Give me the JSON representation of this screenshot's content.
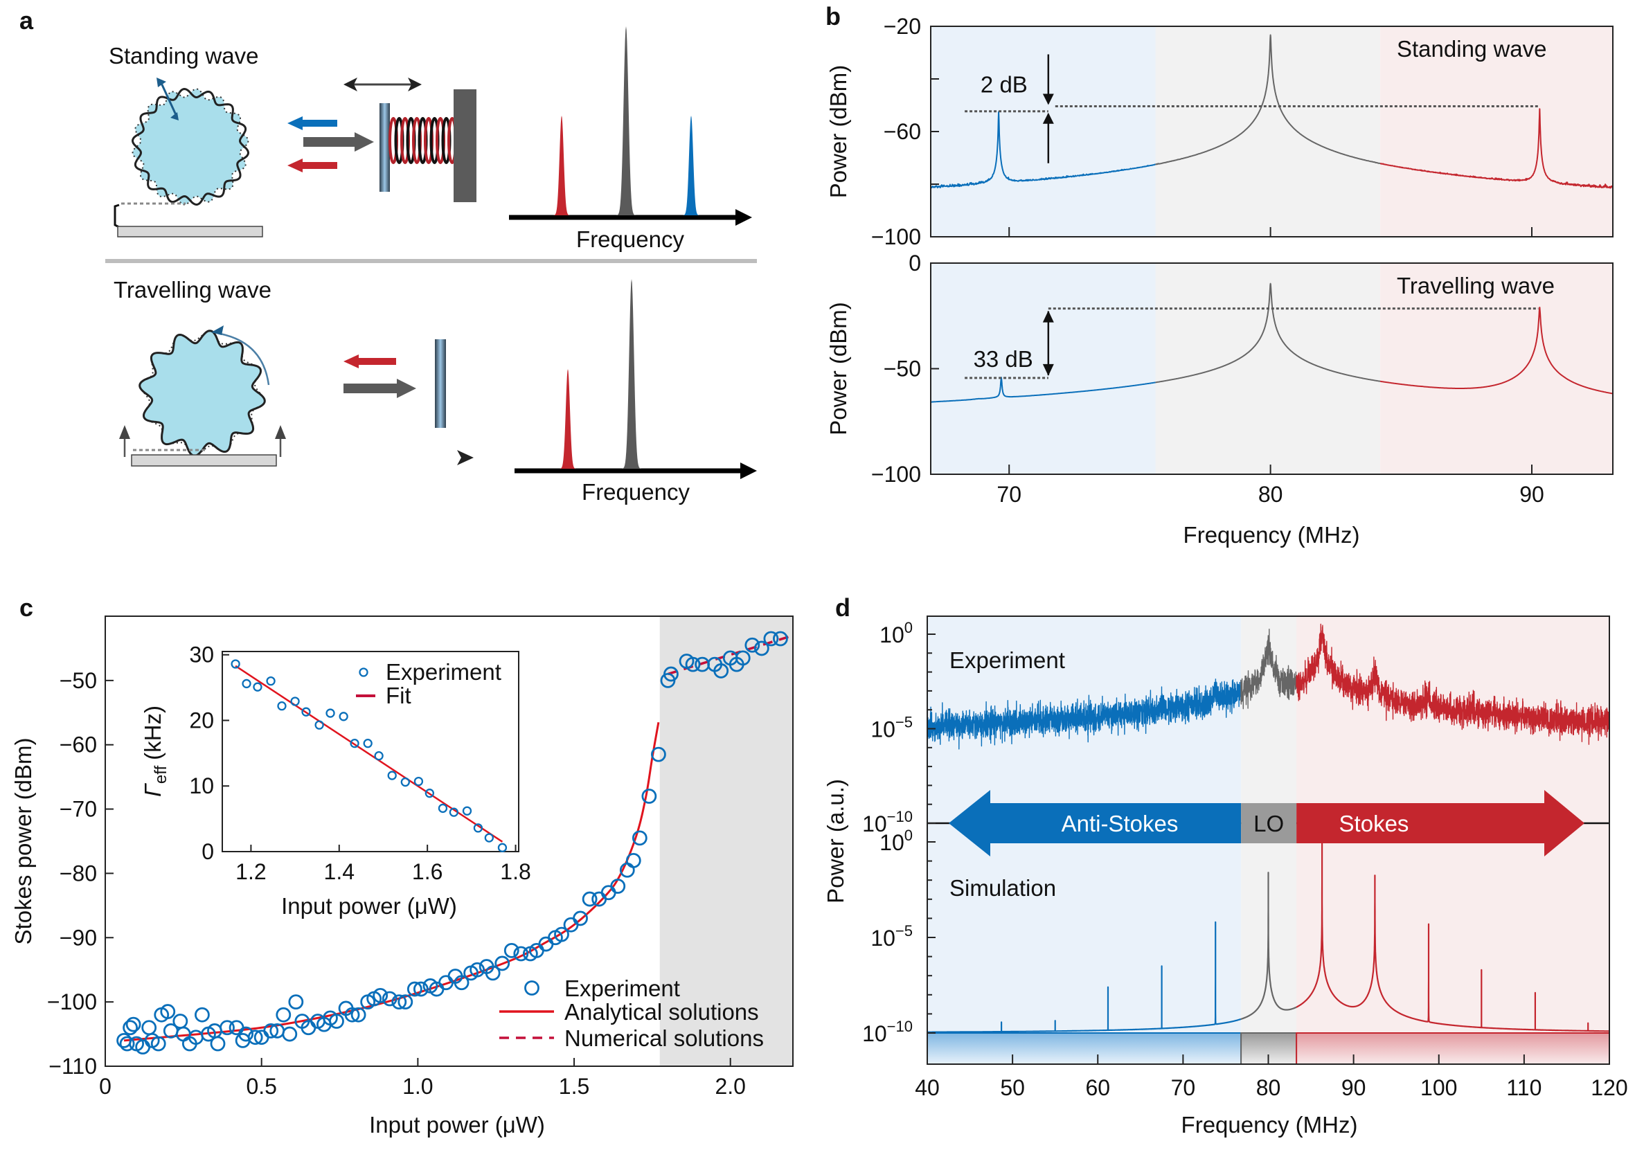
{
  "panel_labels": {
    "a": "a",
    "b": "b",
    "c": "c",
    "d": "d"
  },
  "panel_a": {
    "standing_title": "Standing wave",
    "travelling_title": "Travelling wave",
    "freq_label": "Frequency",
    "colors": {
      "stokes": "#c4262e",
      "anti_stokes": "#0a6fba",
      "pump": "#5a5a5a",
      "resonator": "#a9deeb"
    }
  },
  "colors": {
    "blue": "#0a6fba",
    "gray": "#666666",
    "red": "#c4262e",
    "blue_bg": "#eaf2fa",
    "gray_bg": "#f2f2f2",
    "red_bg": "#f9eded",
    "shade": "#e3e3e3"
  },
  "chart_data": [
    {
      "id": "b-standing",
      "type": "line",
      "title": "Standing wave",
      "xlabel": "Frequency (MHz)",
      "ylabel": "Power (dBm)",
      "xlim": [
        67,
        93.1
      ],
      "ylim": [
        -100,
        -20
      ],
      "xticks": [
        70,
        80,
        90
      ],
      "yticks": [
        -20,
        -60,
        -100
      ],
      "yminor": [
        -40,
        -80
      ],
      "regions": [
        [
          67,
          75.6
        ],
        [
          75.6,
          84.2
        ],
        [
          84.2,
          93.1
        ]
      ],
      "noise_floor_dbm": -89,
      "peaks": [
        [
          69.6,
          -52.5,
          0.01
        ],
        [
          80,
          -23.3,
          0.015
        ],
        [
          80,
          -76,
          0.15
        ],
        [
          78.3,
          -85,
          0.3
        ],
        [
          81.8,
          -85,
          0.3
        ],
        [
          90.3,
          -51.4,
          0.01
        ]
      ],
      "annotation": {
        "text": "2 dB",
        "anti_stokes_level": -52.3,
        "stokes_level": -50.4,
        "x": 71.5
      }
    },
    {
      "id": "b-travelling",
      "type": "line",
      "title": "Travelling wave",
      "xlabel": "Frequency (MHz)",
      "ylabel": "Power (dBm)",
      "xlim": [
        67,
        93.1
      ],
      "ylim": [
        -100,
        0
      ],
      "xticks": [
        70,
        80,
        90
      ],
      "yticks": [
        0,
        -50,
        -100
      ],
      "regions": [
        [
          67,
          75.6
        ],
        [
          75.6,
          84.2
        ],
        [
          84.2,
          93.1
        ]
      ],
      "noise_floor_dbm": -84,
      "peaks": [
        [
          69.7,
          -54.7,
          0.02
        ],
        [
          69.6,
          -76,
          0.4
        ],
        [
          68.8,
          -78,
          0.15
        ],
        [
          80,
          -9.7,
          0.02
        ],
        [
          79.85,
          -55,
          0.04
        ],
        [
          80.2,
          -55,
          0.04
        ],
        [
          80,
          -70,
          0.25
        ],
        [
          78.0,
          -77,
          0.2
        ],
        [
          82.0,
          -76,
          0.2
        ],
        [
          85.8,
          -77,
          0.02
        ],
        [
          90.3,
          -21,
          0.02
        ],
        [
          90.1,
          -62,
          0.05
        ],
        [
          90.45,
          -63,
          0.05
        ],
        [
          90.3,
          -72,
          0.3
        ],
        [
          91.2,
          -72,
          0.1
        ]
      ],
      "annotation": {
        "text": "33 dB",
        "anti_stokes_level": -54.4,
        "stokes_level": -21.5,
        "x": 71.5
      }
    },
    {
      "id": "c-main",
      "type": "scatter",
      "xlabel": "Input power (μW)",
      "ylabel": "Stokes power (dBm)",
      "xlim": [
        0,
        2.2
      ],
      "ylim": [
        -110,
        -40
      ],
      "xticks": [
        0,
        0.5,
        1.0,
        1.5,
        2.0
      ],
      "xtick_labels": [
        "0",
        "0.5",
        "1.0",
        "1.5",
        "2.0"
      ],
      "yticks": [
        -50,
        -60,
        -70,
        -80,
        -90,
        -100,
        -110
      ],
      "shaded_region": [
        1.774,
        2.2
      ],
      "legend": [
        "Experiment",
        "Analytical solutions",
        "Numerical solutions"
      ],
      "experiment": [
        [
          0.06,
          -106
        ],
        [
          0.07,
          -106.5
        ],
        [
          0.08,
          -104
        ],
        [
          0.09,
          -103.5
        ],
        [
          0.1,
          -106.5
        ],
        [
          0.12,
          -107
        ],
        [
          0.14,
          -104
        ],
        [
          0.15,
          -106
        ],
        [
          0.17,
          -106.5
        ],
        [
          0.18,
          -102
        ],
        [
          0.2,
          -101.5
        ],
        [
          0.21,
          -104.5
        ],
        [
          0.24,
          -103
        ],
        [
          0.25,
          -105
        ],
        [
          0.27,
          -106.5
        ],
        [
          0.29,
          -105.5
        ],
        [
          0.31,
          -102
        ],
        [
          0.33,
          -105
        ],
        [
          0.35,
          -104.5
        ],
        [
          0.36,
          -106.5
        ],
        [
          0.39,
          -104
        ],
        [
          0.42,
          -104
        ],
        [
          0.44,
          -106
        ],
        [
          0.45,
          -105
        ],
        [
          0.48,
          -105.5
        ],
        [
          0.5,
          -105.5
        ],
        [
          0.53,
          -104.5
        ],
        [
          0.55,
          -104.5
        ],
        [
          0.57,
          -102
        ],
        [
          0.59,
          -105
        ],
        [
          0.61,
          -100
        ],
        [
          0.63,
          -103
        ],
        [
          0.65,
          -104
        ],
        [
          0.68,
          -103
        ],
        [
          0.7,
          -103.5
        ],
        [
          0.72,
          -102.5
        ],
        [
          0.74,
          -103
        ],
        [
          0.77,
          -101
        ],
        [
          0.79,
          -102
        ],
        [
          0.81,
          -102
        ],
        [
          0.84,
          -100
        ],
        [
          0.86,
          -99.5
        ],
        [
          0.88,
          -99
        ],
        [
          0.91,
          -99.5
        ],
        [
          0.94,
          -100
        ],
        [
          0.96,
          -100
        ],
        [
          0.99,
          -98
        ],
        [
          1.01,
          -98
        ],
        [
          1.04,
          -97.5
        ],
        [
          1.06,
          -98
        ],
        [
          1.09,
          -97
        ],
        [
          1.12,
          -96
        ],
        [
          1.14,
          -97
        ],
        [
          1.17,
          -95.5
        ],
        [
          1.19,
          -95
        ],
        [
          1.22,
          -94.5
        ],
        [
          1.24,
          -95.5
        ],
        [
          1.27,
          -94
        ],
        [
          1.3,
          -92
        ],
        [
          1.33,
          -92.5
        ],
        [
          1.36,
          -92.5
        ],
        [
          1.38,
          -92
        ],
        [
          1.41,
          -91
        ],
        [
          1.44,
          -90
        ],
        [
          1.46,
          -89.5
        ],
        [
          1.49,
          -88
        ],
        [
          1.52,
          -87
        ],
        [
          1.55,
          -84
        ],
        [
          1.58,
          -84
        ],
        [
          1.61,
          -83
        ],
        [
          1.64,
          -82
        ],
        [
          1.67,
          -79.5
        ],
        [
          1.69,
          -78
        ],
        [
          1.71,
          -74.5
        ],
        [
          1.74,
          -68
        ],
        [
          1.77,
          -61.5
        ],
        [
          1.8,
          -50
        ],
        [
          1.81,
          -49
        ],
        [
          1.86,
          -47
        ],
        [
          1.88,
          -47.5
        ],
        [
          1.91,
          -47.5
        ],
        [
          1.95,
          -47.5
        ],
        [
          1.97,
          -48.5
        ],
        [
          2.0,
          -46.5
        ],
        [
          2.02,
          -47.5
        ],
        [
          2.04,
          -46.5
        ],
        [
          2.07,
          -44.5
        ],
        [
          2.1,
          -45
        ],
        [
          2.13,
          -43.5
        ],
        [
          2.16,
          -43.5
        ]
      ],
      "analytical": [
        [
          0.06,
          -106
        ],
        [
          0.3,
          -105
        ],
        [
          0.5,
          -104
        ],
        [
          0.7,
          -102.3
        ],
        [
          0.9,
          -100
        ],
        [
          1.1,
          -97
        ],
        [
          1.3,
          -93.5
        ],
        [
          1.4,
          -91
        ],
        [
          1.5,
          -88
        ],
        [
          1.6,
          -83.5
        ],
        [
          1.65,
          -80
        ],
        [
          1.7,
          -74
        ],
        [
          1.73,
          -68
        ],
        [
          1.75,
          -62
        ],
        [
          1.77,
          -56.5
        ]
      ],
      "numerical": [
        [
          1.8,
          -49
        ],
        [
          2.2,
          -43
        ]
      ]
    },
    {
      "id": "c-inset",
      "type": "scatter",
      "xlabel": "Input power (μW)",
      "ylabel_symbol": "Γ",
      "ylabel_sub": "eff",
      "ylabel_unit": "(kHz)",
      "xlim": [
        1.135,
        1.807
      ],
      "ylim": [
        0,
        30.5
      ],
      "xticks": [
        1.2,
        1.4,
        1.6,
        1.8
      ],
      "xtick_labels": [
        "1.2",
        "1.4",
        "1.6",
        "1.8"
      ],
      "yticks": [
        0,
        10,
        20,
        30
      ],
      "legend": [
        "Experiment",
        "Fit"
      ],
      "experiment": [
        [
          1.165,
          28.6
        ],
        [
          1.19,
          25.6
        ],
        [
          1.215,
          25.1
        ],
        [
          1.245,
          26
        ],
        [
          1.27,
          22.2
        ],
        [
          1.3,
          22.9
        ],
        [
          1.325,
          21.3
        ],
        [
          1.355,
          19.3
        ],
        [
          1.38,
          21.1
        ],
        [
          1.41,
          20.6
        ],
        [
          1.435,
          16.5
        ],
        [
          1.465,
          16.5
        ],
        [
          1.49,
          14.6
        ],
        [
          1.52,
          11.6
        ],
        [
          1.55,
          10.6
        ],
        [
          1.58,
          10.7
        ],
        [
          1.605,
          8.9
        ],
        [
          1.635,
          6.6
        ],
        [
          1.66,
          6.0
        ],
        [
          1.69,
          6.2
        ],
        [
          1.715,
          3.6
        ],
        [
          1.74,
          2.1
        ],
        [
          1.77,
          0.6
        ]
      ],
      "fit": [
        [
          1.165,
          28.3
        ],
        [
          1.77,
          1.5
        ]
      ]
    },
    {
      "id": "d-experiment",
      "type": "line",
      "title": "Experiment",
      "xlabel": "Frequency (MHz)",
      "ylabel": "Power (a.u.)",
      "yscale": "log",
      "xlim": [
        40,
        120
      ],
      "ylim_log10": [
        -10,
        0.95
      ],
      "xticks": [
        40,
        50,
        60,
        70,
        80,
        90,
        100,
        110,
        120
      ],
      "ytick_base": "10",
      "ytick_exponents": [
        "0",
        "−5",
        "−10"
      ],
      "ytick_values_log10": [
        0,
        -5,
        -10
      ],
      "regions": [
        [
          40,
          76.8
        ],
        [
          76.8,
          83.3
        ],
        [
          83.3,
          120
        ]
      ],
      "region_labels": [
        "Anti-Stokes",
        "LO",
        "Stokes"
      ],
      "noise_floor_log10": -7.4,
      "peaks": [
        [
          61.2,
          -5.8,
          0.15
        ],
        [
          67.5,
          -4.1,
          0.15
        ],
        [
          73.8,
          -3.0,
          0.15
        ],
        [
          80,
          -0.6,
          0.15
        ],
        [
          86.3,
          0,
          0.12
        ],
        [
          92.5,
          -1.9,
          0.12
        ],
        [
          98.8,
          -3.2,
          0.12
        ],
        [
          105,
          -4.6,
          0.12
        ],
        [
          111.3,
          -5.7,
          0.12
        ]
      ]
    },
    {
      "id": "d-simulation",
      "type": "line",
      "title": "Simulation",
      "yscale": "log",
      "xlim": [
        40,
        120
      ],
      "ylim_log10": [
        -11.6,
        0.95
      ],
      "ytick_base": "10",
      "ytick_exponents": [
        "0",
        "−5",
        "−10"
      ],
      "ytick_values_log10": [
        0,
        -5,
        -10
      ],
      "floor_log10": -10,
      "peaks": [
        [
          48.7,
          -9.6,
          2e-05
        ],
        [
          55,
          -9.5,
          2e-05
        ],
        [
          61.2,
          -7.6,
          2e-05
        ],
        [
          67.5,
          -6.5,
          2e-05
        ],
        [
          73.8,
          -4.2,
          2e-05
        ],
        [
          80,
          -1.6,
          0.0003
        ],
        [
          86.3,
          0,
          0.00013
        ],
        [
          92.5,
          -1.75,
          0.0006
        ],
        [
          98.8,
          -4.3,
          5e-05
        ],
        [
          105,
          -6.7,
          5e-05
        ],
        [
          111.3,
          -7.9,
          5e-05
        ],
        [
          117.5,
          -9.7,
          5e-05
        ]
      ]
    }
  ]
}
